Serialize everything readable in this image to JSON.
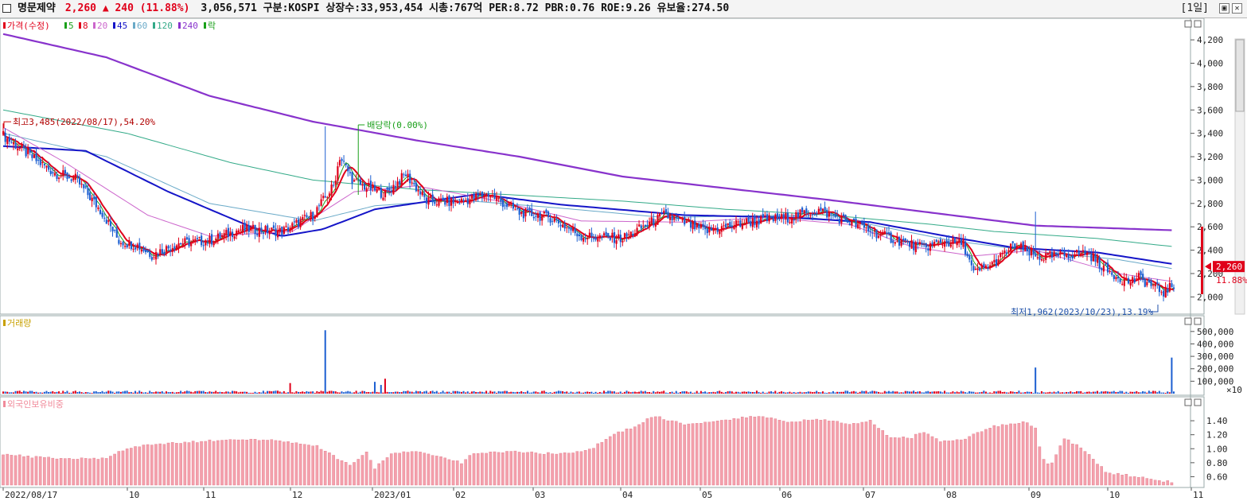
{
  "header": {
    "name": "명문제약",
    "price": "2,260",
    "arrow": "▲",
    "change": "240",
    "change_pct": "(11.88%)",
    "info": "3,056,571  구분:KOSPI 상장수:33,953,454 시총:767억 PER:8.72 PBR:0.76 ROE:9.26 유보율:274.50",
    "period": "[1일]",
    "btn_restore": "▣",
    "btn_close": "✕"
  },
  "colors": {
    "up": "#e0001a",
    "down": "#1c5fd1",
    "ma5": "#1aa01a",
    "ma8": "#e0001a",
    "ma20": "#cc66cc",
    "ma45": "#1515c8",
    "ma60": "#6aaac8",
    "ma120": "#33aa88",
    "ma240": "#8833cc",
    "bg": "#ffffff"
  },
  "chart_data": [
    {
      "type": "candlestick",
      "panel": "price",
      "legend": [
        {
          "label": "가격(수정)",
          "color": "#e0001a"
        },
        {
          "label": "5",
          "color": "#1aa01a"
        },
        {
          "label": "8",
          "color": "#e0001a"
        },
        {
          "label": "20",
          "color": "#cc66cc"
        },
        {
          "label": "45",
          "color": "#1515c8"
        },
        {
          "label": "60",
          "color": "#6aaac8"
        },
        {
          "label": "120",
          "color": "#33aa88"
        },
        {
          "label": "240",
          "color": "#8833cc"
        },
        {
          "label": "락",
          "color": "#1aa01a"
        }
      ],
      "x_labels": [
        "2022/08/17",
        "10",
        "11",
        "12",
        "2023/01",
        "02",
        "03",
        "04",
        "05",
        "06",
        "07",
        "08",
        "09",
        "10",
        "11"
      ],
      "y_ticks": [
        "4,200",
        "4,000",
        "3,800",
        "3,600",
        "3,400",
        "3,200",
        "3,000",
        "2,800",
        "2,600",
        "2,400",
        "2,200",
        "2,000"
      ],
      "ylim": [
        1880,
        4330
      ],
      "annotations": {
        "high": "최고3,485(2022/08/17),54.20%",
        "low": "최저1,962(2023/10/23),13.19%",
        "dividend": "배당락(0.00%)"
      },
      "current_price": "2,260",
      "current_pct": "11.88%",
      "close_keyframes": [
        [
          0,
          3380
        ],
        [
          15,
          3180
        ],
        [
          25,
          3060
        ],
        [
          35,
          3010
        ],
        [
          48,
          2720
        ],
        [
          56,
          2480
        ],
        [
          65,
          2440
        ],
        [
          72,
          2360
        ],
        [
          85,
          2460
        ],
        [
          100,
          2480
        ],
        [
          115,
          2580
        ],
        [
          135,
          2560
        ],
        [
          150,
          2700
        ],
        [
          160,
          2950
        ],
        [
          163,
          3200
        ],
        [
          170,
          2980
        ],
        [
          185,
          2880
        ],
        [
          195,
          3050
        ],
        [
          205,
          2820
        ],
        [
          220,
          2810
        ],
        [
          235,
          2880
        ],
        [
          250,
          2720
        ],
        [
          265,
          2680
        ],
        [
          280,
          2520
        ],
        [
          300,
          2500
        ],
        [
          320,
          2700
        ],
        [
          340,
          2560
        ],
        [
          360,
          2640
        ],
        [
          380,
          2680
        ],
        [
          395,
          2740
        ],
        [
          410,
          2640
        ],
        [
          425,
          2530
        ],
        [
          445,
          2420
        ],
        [
          455,
          2470
        ],
        [
          465,
          2460
        ],
        [
          470,
          2200
        ],
        [
          480,
          2290
        ],
        [
          490,
          2450
        ],
        [
          500,
          2340
        ],
        [
          510,
          2350
        ],
        [
          525,
          2380
        ],
        [
          535,
          2220
        ],
        [
          545,
          2130
        ],
        [
          550,
          2160
        ],
        [
          562,
          2040
        ],
        [
          567,
          2100
        ],
        [
          570,
          2260
        ]
      ],
      "ma240_keyframes": [
        [
          0,
          4250
        ],
        [
          50,
          4050
        ],
        [
          100,
          3720
        ],
        [
          150,
          3500
        ],
        [
          200,
          3340
        ],
        [
          250,
          3200
        ],
        [
          300,
          3030
        ],
        [
          350,
          2930
        ],
        [
          400,
          2830
        ],
        [
          450,
          2720
        ],
        [
          500,
          2610
        ],
        [
          567,
          2570
        ]
      ],
      "ma120_keyframes": [
        [
          0,
          3600
        ],
        [
          60,
          3400
        ],
        [
          110,
          3150
        ],
        [
          150,
          3000
        ],
        [
          200,
          2920
        ],
        [
          250,
          2870
        ],
        [
          300,
          2820
        ],
        [
          350,
          2750
        ],
        [
          400,
          2700
        ],
        [
          450,
          2620
        ],
        [
          480,
          2560
        ],
        [
          530,
          2500
        ],
        [
          567,
          2430
        ]
      ],
      "ma60_keyframes": [
        [
          0,
          3400
        ],
        [
          50,
          3200
        ],
        [
          100,
          2800
        ],
        [
          150,
          2650
        ],
        [
          180,
          2780
        ],
        [
          220,
          2830
        ],
        [
          270,
          2760
        ],
        [
          320,
          2680
        ],
        [
          380,
          2700
        ],
        [
          420,
          2620
        ],
        [
          460,
          2480
        ],
        [
          500,
          2390
        ],
        [
          540,
          2320
        ],
        [
          567,
          2240
        ]
      ],
      "ma45_keyframes": [
        [
          0,
          3290
        ],
        [
          40,
          3250
        ],
        [
          80,
          2900
        ],
        [
          120,
          2600
        ],
        [
          135,
          2520
        ],
        [
          155,
          2580
        ],
        [
          180,
          2750
        ],
        [
          230,
          2880
        ],
        [
          270,
          2790
        ],
        [
          330,
          2700
        ],
        [
          380,
          2680
        ],
        [
          420,
          2640
        ],
        [
          460,
          2510
        ],
        [
          490,
          2420
        ],
        [
          530,
          2380
        ],
        [
          567,
          2280
        ]
      ],
      "ma20_keyframes": [
        [
          0,
          3450
        ],
        [
          30,
          3150
        ],
        [
          70,
          2700
        ],
        [
          100,
          2520
        ],
        [
          140,
          2560
        ],
        [
          170,
          2900
        ],
        [
          200,
          2950
        ],
        [
          240,
          2820
        ],
        [
          280,
          2650
        ],
        [
          330,
          2640
        ],
        [
          370,
          2680
        ],
        [
          410,
          2620
        ],
        [
          440,
          2430
        ],
        [
          470,
          2350
        ],
        [
          500,
          2400
        ],
        [
          540,
          2200
        ],
        [
          567,
          2130
        ]
      ]
    },
    {
      "type": "bar",
      "panel": "volume",
      "legend": [
        {
          "label": "거래량",
          "color": "#c8a000"
        }
      ],
      "y_ticks": [
        "500,000",
        "400,000",
        "300,000",
        "200,000",
        "100,000"
      ],
      "y_unit": "×10",
      "ylim": [
        0,
        550000
      ],
      "spikes": [
        [
          139,
          85000
        ],
        [
          156,
          510000
        ],
        [
          180,
          95000
        ],
        [
          183,
          70000
        ],
        [
          185,
          120000
        ],
        [
          500,
          210000
        ],
        [
          566,
          290000
        ]
      ]
    },
    {
      "type": "bar",
      "panel": "foreign_ownership",
      "legend": [
        {
          "label": "외국인보유비중",
          "color": "#f08a9a"
        }
      ],
      "y_ticks": [
        "1.40",
        "1.20",
        "1.00",
        "0.80",
        "0.60"
      ],
      "ylim": [
        0.48,
        1.56
      ],
      "keyframes": [
        [
          0,
          0.92
        ],
        [
          15,
          0.88
        ],
        [
          30,
          0.86
        ],
        [
          50,
          0.86
        ],
        [
          58,
          0.98
        ],
        [
          70,
          1.06
        ],
        [
          95,
          1.1
        ],
        [
          110,
          1.14
        ],
        [
          130,
          1.12
        ],
        [
          152,
          1.04
        ],
        [
          162,
          0.86
        ],
        [
          168,
          0.76
        ],
        [
          176,
          0.94
        ],
        [
          180,
          0.72
        ],
        [
          188,
          0.94
        ],
        [
          200,
          0.96
        ],
        [
          215,
          0.85
        ],
        [
          222,
          0.8
        ],
        [
          228,
          0.94
        ],
        [
          250,
          0.96
        ],
        [
          270,
          0.92
        ],
        [
          285,
          1.0
        ],
        [
          295,
          1.2
        ],
        [
          305,
          1.3
        ],
        [
          315,
          1.47
        ],
        [
          330,
          1.35
        ],
        [
          345,
          1.4
        ],
        [
          365,
          1.47
        ],
        [
          380,
          1.38
        ],
        [
          395,
          1.42
        ],
        [
          410,
          1.36
        ],
        [
          420,
          1.4
        ],
        [
          425,
          1.28
        ],
        [
          430,
          1.15
        ],
        [
          440,
          1.16
        ],
        [
          445,
          1.25
        ],
        [
          455,
          1.1
        ],
        [
          465,
          1.14
        ],
        [
          480,
          1.32
        ],
        [
          495,
          1.38
        ],
        [
          500,
          1.3
        ],
        [
          503,
          0.88
        ],
        [
          507,
          0.75
        ],
        [
          510,
          0.92
        ],
        [
          514,
          1.15
        ],
        [
          520,
          1.05
        ],
        [
          525,
          0.94
        ],
        [
          535,
          0.65
        ],
        [
          545,
          0.62
        ],
        [
          556,
          0.56
        ],
        [
          567,
          0.52
        ]
      ]
    }
  ]
}
